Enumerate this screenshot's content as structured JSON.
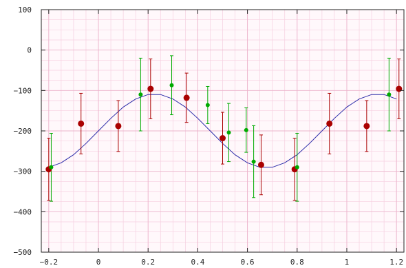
{
  "chart_data": {
    "type": "scatter",
    "title": "",
    "xlabel": "",
    "ylabel": "",
    "xlim": [
      -0.23,
      1.23
    ],
    "ylim": [
      -500,
      100
    ],
    "grid": true,
    "legend": "none",
    "x_ticks": [
      -0.2,
      0,
      0.2,
      0.4,
      0.6,
      0.8,
      1,
      1.2
    ],
    "x_tick_labels": [
      "−0.2",
      "0",
      "0.2",
      "0.4",
      "0.6",
      "0.8",
      "1",
      "1.2"
    ],
    "y_ticks": [
      100,
      0,
      -100,
      -200,
      -300,
      -400,
      -500
    ],
    "y_tick_labels": [
      "100",
      "0",
      "−100",
      "−200",
      "−300",
      "−400",
      "−500"
    ],
    "curve": {
      "color": "#2a2aa8",
      "x_start": -0.23,
      "x_end": 1.23,
      "points": [
        [
          -0.2,
          -290
        ],
        [
          -0.15,
          -279
        ],
        [
          -0.1,
          -259
        ],
        [
          -0.05,
          -231
        ],
        [
          0.0,
          -200
        ],
        [
          0.05,
          -169
        ],
        [
          0.1,
          -141
        ],
        [
          0.15,
          -121
        ],
        [
          0.2,
          -110
        ],
        [
          0.25,
          -110
        ],
        [
          0.3,
          -121
        ],
        [
          0.35,
          -141
        ],
        [
          0.4,
          -169
        ],
        [
          0.45,
          -200
        ],
        [
          0.5,
          -231
        ],
        [
          0.55,
          -259
        ],
        [
          0.6,
          -279
        ],
        [
          0.65,
          -290
        ],
        [
          0.7,
          -290
        ],
        [
          0.75,
          -279
        ],
        [
          0.8,
          -259
        ],
        [
          0.85,
          -231
        ],
        [
          0.9,
          -200
        ],
        [
          0.95,
          -169
        ],
        [
          1.0,
          -141
        ],
        [
          1.05,
          -121
        ],
        [
          1.1,
          -110
        ],
        [
          1.15,
          -110
        ],
        [
          1.2,
          -121
        ]
      ]
    },
    "series": [
      {
        "color": "#aa0000",
        "marker": "large-dot",
        "points": [
          {
            "x": -0.2,
            "y": -295,
            "err": 77
          },
          {
            "x": -0.07,
            "y": -182,
            "err": 75
          },
          {
            "x": 0.08,
            "y": -188,
            "err": 63
          },
          {
            "x": 0.21,
            "y": -96,
            "err": 74
          },
          {
            "x": 0.355,
            "y": -118,
            "err": 61
          },
          {
            "x": 0.5,
            "y": -218,
            "err": 64
          },
          {
            "x": 0.655,
            "y": -284,
            "err": 74
          },
          {
            "x": 0.79,
            "y": -295,
            "err": 77
          },
          {
            "x": 0.93,
            "y": -182,
            "err": 75
          },
          {
            "x": 1.08,
            "y": -188,
            "err": 63
          },
          {
            "x": 1.21,
            "y": -96,
            "err": 74
          }
        ]
      },
      {
        "color": "#00aa00",
        "marker": "small-dot",
        "points": [
          {
            "x": -0.19,
            "y": -290,
            "err": 84
          },
          {
            "x": 0.17,
            "y": -110,
            "err": 90
          },
          {
            "x": 0.295,
            "y": -87,
            "err": 73
          },
          {
            "x": 0.44,
            "y": -136,
            "err": 46
          },
          {
            "x": 0.525,
            "y": -204,
            "err": 72
          },
          {
            "x": 0.595,
            "y": -198,
            "err": 55
          },
          {
            "x": 0.625,
            "y": -276,
            "err": 89
          },
          {
            "x": 0.8,
            "y": -290,
            "err": 84
          },
          {
            "x": 1.17,
            "y": -110,
            "err": 90
          }
        ]
      }
    ]
  }
}
